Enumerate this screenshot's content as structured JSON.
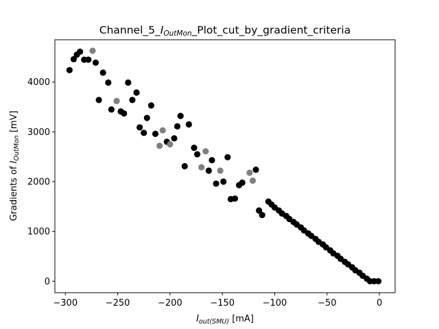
{
  "chart_data": {
    "type": "scatter",
    "title": {
      "prefix": "Channel_5_",
      "italic_main": "I",
      "italic_sub": "OutMon",
      "suffix": "_Plot_cut_by_gradient_criteria"
    },
    "xlabel": {
      "italic_main": "I",
      "italic_sub": "out(SMU)",
      "suffix": " [mA]"
    },
    "ylabel": {
      "prefix": "Gradients of ",
      "italic_main": "I",
      "italic_sub": "OutMon",
      "suffix": " [mV]"
    },
    "xlim": [
      -310,
      15
    ],
    "ylim": [
      -230,
      4850
    ],
    "xticks": [
      -300,
      -250,
      -200,
      -150,
      -100,
      -50,
      0
    ],
    "xtick_labels": [
      "−300",
      "−250",
      "−200",
      "−150",
      "−100",
      "−50",
      "0"
    ],
    "yticks": [
      0,
      1000,
      2000,
      3000,
      4000
    ],
    "ytick_labels": [
      "0",
      "1000",
      "2000",
      "3000",
      "4000"
    ],
    "grid": false,
    "colors": {
      "kept": "#000000",
      "cut": "#808080"
    },
    "series": [
      {
        "color": "#000000",
        "points": [
          [
            -296,
            4240
          ],
          [
            -292,
            4460
          ],
          [
            -289,
            4550
          ],
          [
            -286,
            4610
          ],
          [
            -282,
            4450
          ],
          [
            -278,
            4450
          ],
          [
            -271,
            4390
          ],
          [
            -268,
            3640
          ],
          [
            -264,
            4190
          ],
          [
            -259,
            3990
          ],
          [
            -256,
            3450
          ],
          [
            -247,
            3410
          ],
          [
            -244,
            3370
          ],
          [
            -240,
            3990
          ],
          [
            -236,
            3640
          ],
          [
            -232,
            3790
          ],
          [
            -229,
            3090
          ],
          [
            -225,
            2980
          ],
          [
            -222,
            3280
          ],
          [
            -218,
            3530
          ],
          [
            -214,
            2960
          ],
          [
            -203,
            2800
          ],
          [
            -196,
            2870
          ],
          [
            -193,
            3110
          ],
          [
            -190,
            3320
          ],
          [
            -186,
            2310
          ],
          [
            -182,
            3150
          ],
          [
            -177,
            2680
          ],
          [
            -174,
            2550
          ],
          [
            -163,
            2220
          ],
          [
            -160,
            2430
          ],
          [
            -156,
            1960
          ],
          [
            -149,
            2000
          ],
          [
            -145,
            2490
          ],
          [
            -142,
            1650
          ],
          [
            -138,
            1660
          ],
          [
            -134,
            1930
          ],
          [
            -131,
            1980
          ],
          [
            -118,
            2240
          ],
          [
            -115,
            1420
          ],
          [
            -112,
            1330
          ],
          [
            -106,
            1600
          ],
          [
            -103,
            1540
          ],
          [
            -100,
            1480
          ],
          [
            -96,
            1420
          ],
          [
            -93,
            1360
          ],
          [
            -89,
            1310
          ],
          [
            -86,
            1250
          ],
          [
            -82,
            1190
          ],
          [
            -79,
            1140
          ],
          [
            -75,
            1080
          ],
          [
            -72,
            1020
          ],
          [
            -68,
            960
          ],
          [
            -65,
            910
          ],
          [
            -61,
            850
          ],
          [
            -58,
            790
          ],
          [
            -54,
            740
          ],
          [
            -51,
            680
          ],
          [
            -47,
            620
          ],
          [
            -44,
            560
          ],
          [
            -40,
            510
          ],
          [
            -37,
            450
          ],
          [
            -33,
            390
          ],
          [
            -30,
            340
          ],
          [
            -26,
            280
          ],
          [
            -23,
            220
          ],
          [
            -19,
            170
          ],
          [
            -16,
            110
          ],
          [
            -12,
            50
          ],
          [
            -9,
            0
          ],
          [
            -5,
            0
          ],
          [
            -1,
            0
          ]
        ]
      },
      {
        "color": "#808080",
        "points": [
          [
            -274,
            4630
          ],
          [
            -251,
            3620
          ],
          [
            -210,
            2720
          ],
          [
            -207,
            3030
          ],
          [
            -200,
            2750
          ],
          [
            -170,
            2290
          ],
          [
            -166,
            2610
          ],
          [
            -152,
            2220
          ],
          [
            -124,
            2180
          ],
          [
            -121,
            2020
          ]
        ]
      }
    ]
  }
}
